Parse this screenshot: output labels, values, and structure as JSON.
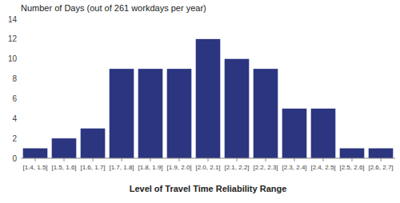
{
  "chart_data": {
    "type": "bar",
    "title": "Number of Days (out of 261 workdays per year)",
    "xlabel": "Level of Travel Time Reliability Range",
    "categories": [
      "[1.4, 1.5]",
      "[1.5, 1.6]",
      "[1.6, 1.7]",
      "[1.7, 1.8]",
      "[1.8, 1.9]",
      "[1.9, 2.0]",
      "[2.0, 2.1]",
      "[2.1, 2.2]",
      "[2.2, 2.3]",
      "[2.3, 2.4]",
      "[2.4, 2.5]",
      "[2.5, 2.6]",
      "[2.6, 2.7]"
    ],
    "values": [
      1,
      2,
      3,
      9,
      9,
      9,
      12,
      10,
      9,
      5,
      5,
      1,
      1
    ],
    "color": "#2b3580",
    "ylim": [
      0,
      14
    ],
    "yticks": [
      0,
      2,
      4,
      6,
      8,
      10,
      12,
      14
    ],
    "grid": false
  }
}
